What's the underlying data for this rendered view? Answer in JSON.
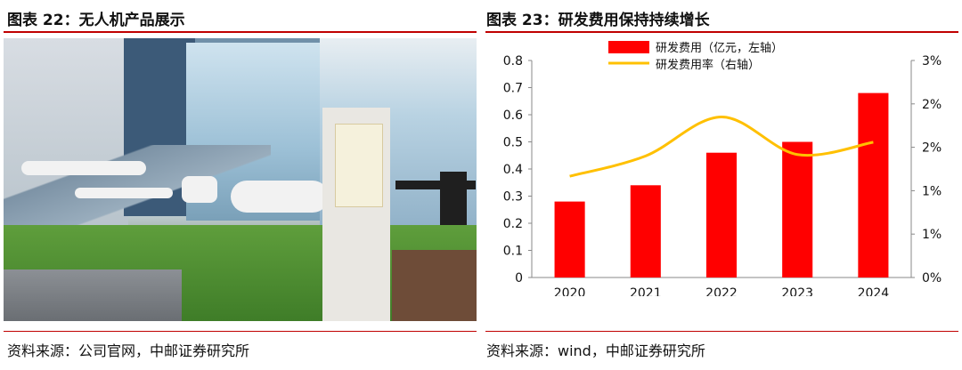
{
  "left_panel": {
    "title": "图表 22：无人机产品展示",
    "source": "资料来源：公司官网，中邮证券研究所"
  },
  "right_panel": {
    "title": "图表 23：研发费用保持持续增长",
    "source": "资料来源：wind，中邮证券研究所"
  },
  "colors": {
    "accent": "#c00000",
    "bar": "#ff0000",
    "line": "#ffc000"
  },
  "chart_data": {
    "type": "bar",
    "categories": [
      "2020",
      "2021",
      "2022",
      "2023",
      "2024"
    ],
    "series": [
      {
        "name": "研发费用（亿元，左轴）",
        "type": "bar",
        "axis": "left",
        "values": [
          0.28,
          0.34,
          0.46,
          0.5,
          0.68
        ]
      },
      {
        "name": "研发费用率（右轴）",
        "type": "line",
        "axis": "right",
        "values": [
          1.4,
          1.68,
          2.22,
          1.7,
          1.87
        ]
      }
    ],
    "y_left": {
      "min": 0,
      "max": 0.8,
      "ticks": [
        "0",
        "0.1",
        "0.2",
        "0.3",
        "0.4",
        "0.5",
        "0.6",
        "0.7",
        "0.8"
      ]
    },
    "y_right": {
      "min": 0,
      "max": 3,
      "ticks": [
        "0%",
        "1%",
        "1%",
        "2%",
        "2%",
        "3%"
      ]
    },
    "legend_position": "top-center",
    "grid": false
  }
}
